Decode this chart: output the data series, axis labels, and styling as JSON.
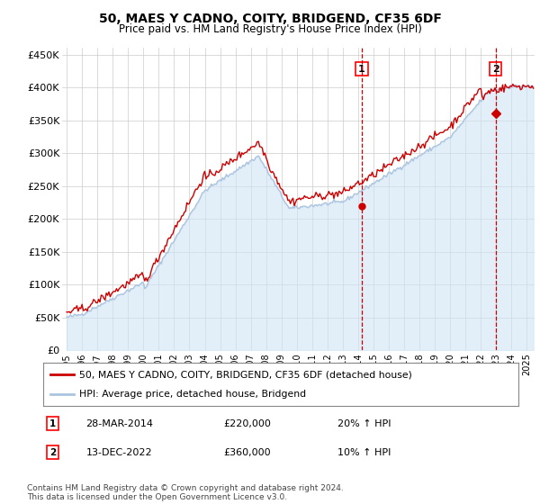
{
  "title": "50, MAES Y CADNO, COITY, BRIDGEND, CF35 6DF",
  "subtitle": "Price paid vs. HM Land Registry's House Price Index (HPI)",
  "ylim": [
    0,
    460000
  ],
  "yticks": [
    0,
    50000,
    100000,
    150000,
    200000,
    250000,
    300000,
    350000,
    400000,
    450000
  ],
  "ytick_labels": [
    "£0",
    "£50K",
    "£100K",
    "£150K",
    "£200K",
    "£250K",
    "£300K",
    "£350K",
    "£400K",
    "£450K"
  ],
  "grid_color": "#cccccc",
  "sale1_date": 2014.23,
  "sale1_price": 220000,
  "sale2_date": 2022.95,
  "sale2_price": 360000,
  "sale1_text": "28-MAR-2014",
  "sale1_pct": "20% ↑ HPI",
  "sale2_text": "13-DEC-2022",
  "sale2_pct": "10% ↑ HPI",
  "hpi_color": "#aac4e0",
  "hpi_fill_color": "#d0e4f4",
  "price_color": "#cc0000",
  "legend_label1": "50, MAES Y CADNO, COITY, BRIDGEND, CF35 6DF (detached house)",
  "legend_label2": "HPI: Average price, detached house, Bridgend",
  "footer": "Contains HM Land Registry data © Crown copyright and database right 2024.\nThis data is licensed under the Open Government Licence v3.0."
}
